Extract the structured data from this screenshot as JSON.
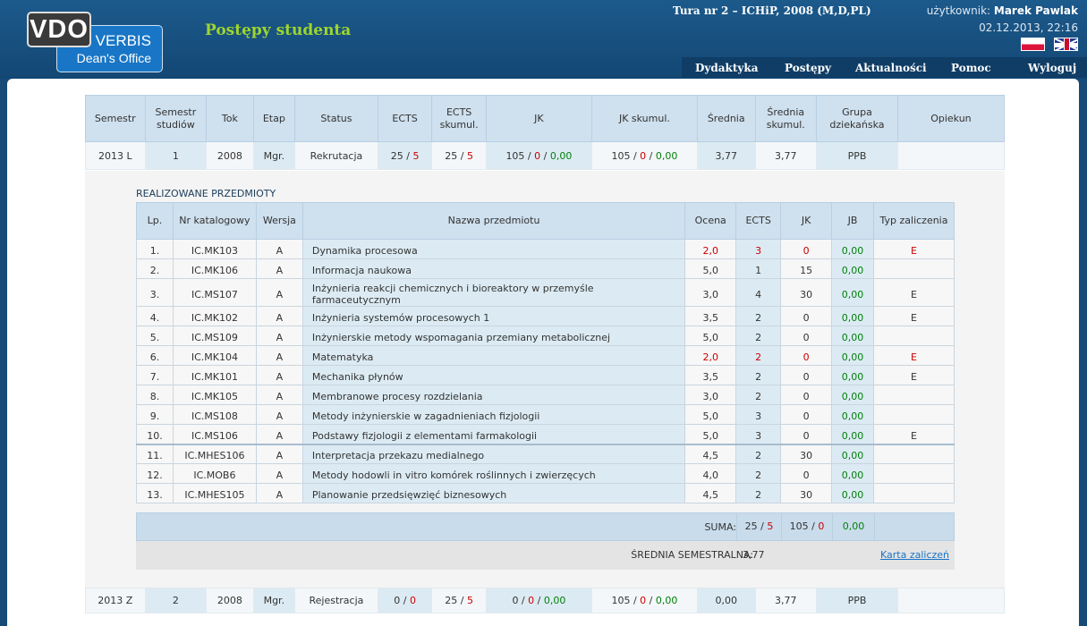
{
  "header": {
    "logo_vdo": "VDO",
    "logo_verbis": "VERBIS",
    "logo_dean": "Dean's Office",
    "title": "Postępy studenta",
    "tour": "Tura nr 2 – ICHiP, 2008 (M,D,PL)",
    "user_label": "użytkownik:",
    "user_name": "Marek Pawlak",
    "datetime": "02.12.2013, 22:16"
  },
  "nav": [
    "Dydaktyka",
    "Postępy",
    "Aktualności",
    "Pomoc",
    "Wyloguj"
  ],
  "semester_headers": [
    "Semestr",
    "Semestr studiów",
    "Tok",
    "Etap",
    "Status",
    "ECTS",
    "ECTS skumul.",
    "JK",
    "JK skumul.",
    "Średnia",
    "Średnia skumul.",
    "Grupa dziekańska",
    "Opiekun"
  ],
  "semester_rows": [
    {
      "semestr": "2013 L",
      "studiow": "1",
      "tok": "2008",
      "etap": "Mgr.",
      "status": "Rekrutacja",
      "ects_a": "25",
      "ects_b": "5",
      "ectsk_a": "25",
      "ectsk_b": "5",
      "jk_a": "105",
      "jk_b": "0",
      "jk_c": "0,00",
      "jkk_a": "105",
      "jkk_b": "0",
      "jkk_c": "0,00",
      "srednia": "3,77",
      "srednia_sk": "3,77",
      "grupa": "PPB",
      "opiekun": ""
    },
    {
      "semestr": "2013 Z",
      "studiow": "2",
      "tok": "2008",
      "etap": "Mgr.",
      "status": "Rejestracja",
      "ects_a": "0",
      "ects_b": "0",
      "ectsk_a": "25",
      "ectsk_b": "5",
      "jk_a": "0",
      "jk_b": "0",
      "jk_c": "0,00",
      "jkk_a": "105",
      "jkk_b": "0",
      "jkk_c": "0,00",
      "srednia": "0,00",
      "srednia_sk": "3,77",
      "grupa": "PPB",
      "opiekun": ""
    }
  ],
  "subjects_title": "REALIZOWANE PRZEDMIOTY",
  "subject_headers": [
    "Lp.",
    "Nr katalogowy",
    "Wersja",
    "Nazwa przedmiotu",
    "Ocena",
    "ECTS",
    "JK",
    "JB",
    "Typ zaliczenia"
  ],
  "subjects": [
    {
      "lp": "1.",
      "nr": "IC.MK103",
      "wersja": "A",
      "nazwa": "Dynamika procesowa",
      "ocena": "2,0",
      "ects": "3",
      "jk": "0",
      "jb": "0,00",
      "typ": "E",
      "fail": true
    },
    {
      "lp": "2.",
      "nr": "IC.MK106",
      "wersja": "A",
      "nazwa": "Informacja naukowa",
      "ocena": "5,0",
      "ects": "1",
      "jk": "15",
      "jb": "0,00",
      "typ": "",
      "fail": false
    },
    {
      "lp": "3.",
      "nr": "IC.MS107",
      "wersja": "A",
      "nazwa": "Inżynieria reakcji chemicznych i bioreaktory w przemyśle farmaceutycznym",
      "ocena": "3,0",
      "ects": "4",
      "jk": "30",
      "jb": "0,00",
      "typ": "E",
      "fail": false
    },
    {
      "lp": "4.",
      "nr": "IC.MK102",
      "wersja": "A",
      "nazwa": "Inżynieria systemów procesowych 1",
      "ocena": "3,5",
      "ects": "2",
      "jk": "0",
      "jb": "0,00",
      "typ": "E",
      "fail": false
    },
    {
      "lp": "5.",
      "nr": "IC.MS109",
      "wersja": "A",
      "nazwa": "Inżynierskie metody wspomagania przemiany metabolicznej",
      "ocena": "5,0",
      "ects": "2",
      "jk": "0",
      "jb": "0,00",
      "typ": "",
      "fail": false
    },
    {
      "lp": "6.",
      "nr": "IC.MK104",
      "wersja": "A",
      "nazwa": "Matematyka",
      "ocena": "2,0",
      "ects": "2",
      "jk": "0",
      "jb": "0,00",
      "typ": "E",
      "fail": true
    },
    {
      "lp": "7.",
      "nr": "IC.MK101",
      "wersja": "A",
      "nazwa": "Mechanika płynów",
      "ocena": "3,5",
      "ects": "2",
      "jk": "0",
      "jb": "0,00",
      "typ": "E",
      "fail": false
    },
    {
      "lp": "8.",
      "nr": "IC.MK105",
      "wersja": "A",
      "nazwa": "Membranowe procesy rozdzielania",
      "ocena": "3,0",
      "ects": "2",
      "jk": "0",
      "jb": "0,00",
      "typ": "",
      "fail": false
    },
    {
      "lp": "9.",
      "nr": "IC.MS108",
      "wersja": "A",
      "nazwa": "Metody inżynierskie w zagadnieniach fizjologii",
      "ocena": "5,0",
      "ects": "3",
      "jk": "0",
      "jb": "0,00",
      "typ": "",
      "fail": false
    },
    {
      "lp": "10.",
      "nr": "IC.MS106",
      "wersja": "A",
      "nazwa": "Podstawy fizjologii z elementami farmakologii",
      "ocena": "5,0",
      "ects": "3",
      "jk": "0",
      "jb": "0,00",
      "typ": "E",
      "fail": false
    },
    {
      "lp": "11.",
      "nr": "IC.MHES106",
      "wersja": "A",
      "nazwa": "Interpretacja przekazu medialnego",
      "ocena": "4,5",
      "ects": "2",
      "jk": "30",
      "jb": "0,00",
      "typ": "",
      "fail": false
    },
    {
      "lp": "12.",
      "nr": "IC.MOB6",
      "wersja": "A",
      "nazwa": "Metody hodowli in vitro komórek roślinnych i zwierzęcych",
      "ocena": "4,0",
      "ects": "2",
      "jk": "0",
      "jb": "0,00",
      "typ": "",
      "fail": false
    },
    {
      "lp": "13.",
      "nr": "IC.MHES105",
      "wersja": "A",
      "nazwa": "Planowanie przedsięwzięć biznesowych",
      "ocena": "4,5",
      "ects": "2",
      "jk": "30",
      "jb": "0,00",
      "typ": "",
      "fail": false
    }
  ],
  "suma": {
    "label": "SUMA:",
    "ects_a": "25",
    "ects_b": "5",
    "jk_a": "105",
    "jk_b": "0",
    "jb": "0,00"
  },
  "average": {
    "label": "ŚREDNIA SEMESTRALNA:",
    "value": "3,77",
    "link": "Karta zaliczeń"
  },
  "colors": {
    "header_bg": "#174a77",
    "accent_green": "#9ed52d",
    "table_header": "#cfe0ee",
    "fail_red": "#cc0000",
    "ok_green": "#00800a"
  }
}
